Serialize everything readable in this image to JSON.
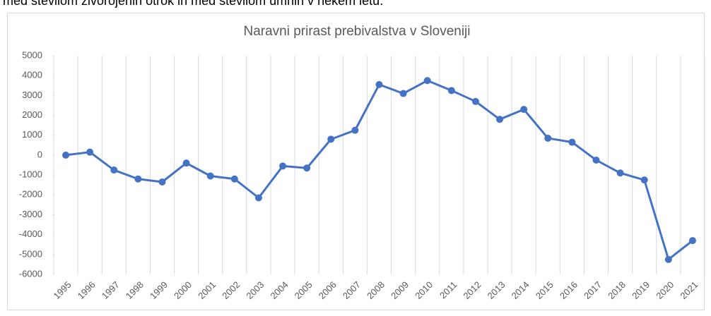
{
  "note": "med številom živorojenih otrok in med številom umrlih v nekem letu.",
  "chart_data": {
    "type": "line",
    "title": "Naravni prirast prebivalstva v Sloveniji",
    "categories": [
      "1995",
      "1996",
      "1997",
      "1998",
      "1999",
      "2000",
      "2001",
      "2002",
      "2003",
      "2004",
      "2005",
      "2006",
      "2007",
      "2008",
      "2009",
      "2010",
      "2011",
      "2012",
      "2013",
      "2014",
      "2015",
      "2016",
      "2017",
      "2018",
      "2019",
      "2020",
      "2021"
    ],
    "series": [
      {
        "name": "Naravni prirast",
        "color": "#4472c4",
        "values": [
          0,
          150,
          -750,
          -1200,
          -1350,
          -400,
          -1050,
          -1200,
          -2150,
          -550,
          -650,
          800,
          1250,
          3550,
          3100,
          3750,
          3250,
          2700,
          1800,
          2300,
          850,
          650,
          -250,
          -900,
          -1250,
          -5250,
          -4300
        ]
      }
    ],
    "ylim": [
      -6000,
      5000
    ],
    "yticks": [
      -6000,
      -5000,
      -4000,
      -3000,
      -2000,
      -1000,
      0,
      1000,
      2000,
      3000,
      4000,
      5000
    ],
    "grid": "x"
  }
}
